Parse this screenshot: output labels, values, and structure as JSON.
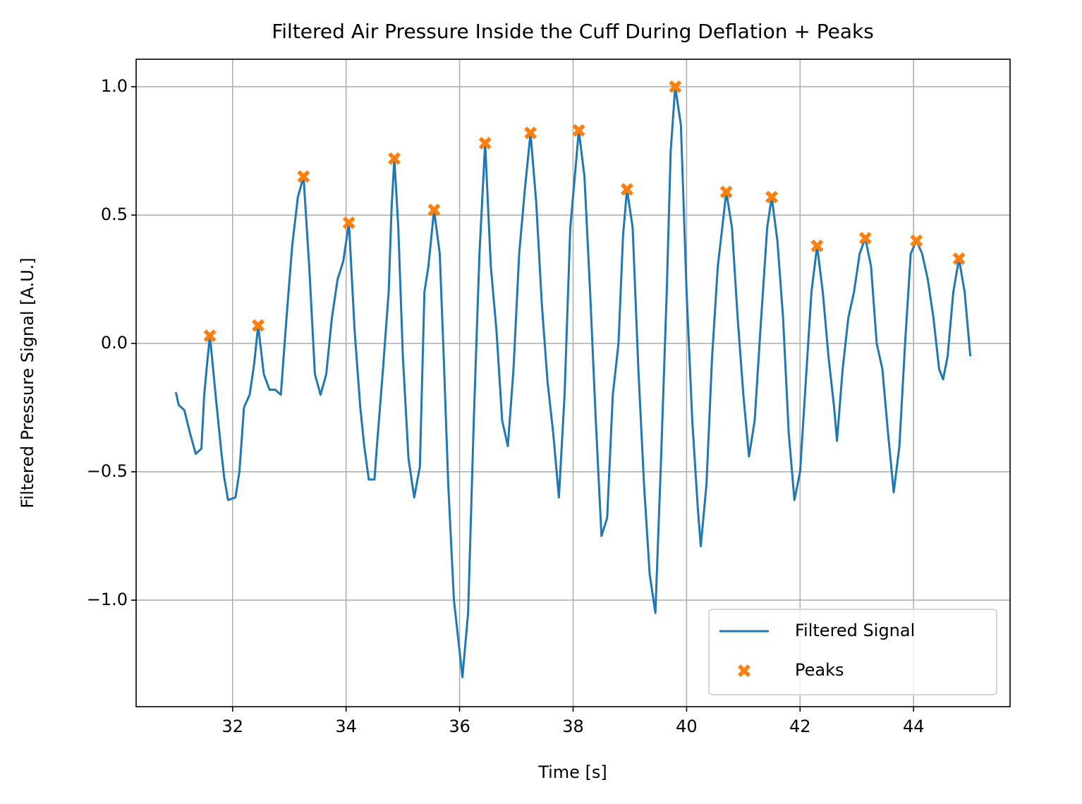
{
  "chart_data": {
    "type": "line",
    "title": "Filtered Air Pressure Inside the Cuff During Deflation + Peaks",
    "xlabel": "Time [s]",
    "ylabel": "Filtered Pressure Signal [A.U.]",
    "xlim": [
      30.3,
      45.7
    ],
    "ylim": [
      -1.415,
      1.107
    ],
    "xticks": [
      32,
      34,
      36,
      38,
      40,
      42,
      44
    ],
    "yticks": [
      {
        "value": -1,
        "label": "−1.0"
      },
      {
        "value": -0.5,
        "label": "−0.5"
      },
      {
        "value": 0,
        "label": "0.0"
      },
      0.5,
      {
        "value": 1,
        "label": "1.0"
      }
    ],
    "grid": true,
    "legend": "lower right",
    "series": [
      {
        "name": "Filtered Signal",
        "kind": "line",
        "color": "#1f77b4",
        "x": [
          31.0,
          31.05,
          31.15,
          31.25,
          31.35,
          31.45,
          31.5,
          31.55,
          31.6,
          31.7,
          31.8,
          31.85,
          31.92,
          32.05,
          32.12,
          32.2,
          32.3,
          32.38,
          32.45,
          32.55,
          32.65,
          32.75,
          32.85,
          32.95,
          33.05,
          33.15,
          33.25,
          33.35,
          33.45,
          33.55,
          33.65,
          33.75,
          33.85,
          33.95,
          34.05,
          34.15,
          34.25,
          34.32,
          34.4,
          34.5,
          34.55,
          34.65,
          34.75,
          34.8,
          34.85,
          34.92,
          35.0,
          35.1,
          35.2,
          35.3,
          35.38,
          35.45,
          35.55,
          35.65,
          35.72,
          35.8,
          35.9,
          36.05,
          36.15,
          36.25,
          36.35,
          36.45,
          36.55,
          36.65,
          36.75,
          36.85,
          36.95,
          37.05,
          37.15,
          37.25,
          37.35,
          37.45,
          37.55,
          37.65,
          37.75,
          37.85,
          37.95,
          38.05,
          38.1,
          38.2,
          38.3,
          38.4,
          38.5,
          38.6,
          38.7,
          38.8,
          38.88,
          38.95,
          39.05,
          39.15,
          39.25,
          39.35,
          39.45,
          39.55,
          39.65,
          39.72,
          39.8,
          39.9,
          40.0,
          40.1,
          40.2,
          40.25,
          40.35,
          40.45,
          40.55,
          40.7,
          40.8,
          40.9,
          41.0,
          41.1,
          41.2,
          41.3,
          41.42,
          41.5,
          41.6,
          41.7,
          41.8,
          41.9,
          42.0,
          42.1,
          42.2,
          42.3,
          42.4,
          42.5,
          42.6,
          42.65,
          42.75,
          42.85,
          42.95,
          43.05,
          43.15,
          43.25,
          43.35,
          43.45,
          43.55,
          43.65,
          43.75,
          43.85,
          43.95,
          44.05,
          44.15,
          44.25,
          44.35,
          44.45,
          44.52,
          44.6,
          44.7,
          44.8,
          44.9,
          45.0
        ],
        "values": [
          -0.19,
          -0.24,
          -0.26,
          -0.35,
          -0.43,
          -0.41,
          -0.2,
          -0.08,
          0.03,
          -0.2,
          -0.42,
          -0.52,
          -0.61,
          -0.6,
          -0.5,
          -0.25,
          -0.2,
          -0.08,
          0.07,
          -0.12,
          -0.18,
          -0.18,
          -0.2,
          0.1,
          0.38,
          0.57,
          0.65,
          0.3,
          -0.12,
          -0.2,
          -0.12,
          0.1,
          0.25,
          0.32,
          0.47,
          0.05,
          -0.25,
          -0.4,
          -0.53,
          -0.53,
          -0.38,
          -0.1,
          0.2,
          0.52,
          0.72,
          0.45,
          -0.05,
          -0.45,
          -0.6,
          -0.48,
          0.2,
          0.3,
          0.52,
          0.35,
          -0.05,
          -0.55,
          -1.0,
          -1.3,
          -1.05,
          -0.3,
          0.35,
          0.78,
          0.3,
          0.05,
          -0.3,
          -0.4,
          -0.1,
          0.35,
          0.6,
          0.82,
          0.55,
          0.15,
          -0.15,
          -0.35,
          -0.6,
          -0.2,
          0.45,
          0.7,
          0.83,
          0.65,
          0.2,
          -0.3,
          -0.75,
          -0.68,
          -0.2,
          0.0,
          0.42,
          0.6,
          0.45,
          -0.1,
          -0.55,
          -0.9,
          -1.05,
          -0.45,
          0.2,
          0.75,
          1.0,
          0.85,
          0.2,
          -0.3,
          -0.65,
          -0.79,
          -0.55,
          -0.05,
          0.3,
          0.59,
          0.45,
          0.1,
          -0.2,
          -0.44,
          -0.3,
          0.05,
          0.45,
          0.57,
          0.4,
          0.1,
          -0.35,
          -0.61,
          -0.5,
          -0.15,
          0.2,
          0.38,
          0.2,
          -0.05,
          -0.25,
          -0.38,
          -0.1,
          0.1,
          0.2,
          0.35,
          0.41,
          0.3,
          0.0,
          -0.1,
          -0.35,
          -0.58,
          -0.4,
          0.0,
          0.35,
          0.4,
          0.35,
          0.25,
          0.1,
          -0.1,
          -0.14,
          -0.05,
          0.2,
          0.33,
          0.2,
          -0.05
        ]
      },
      {
        "name": "Peaks",
        "kind": "marker",
        "color": "#ff7f0e",
        "x": [
          31.6,
          32.45,
          33.25,
          34.05,
          34.85,
          35.55,
          36.45,
          37.25,
          38.1,
          38.95,
          39.8,
          40.7,
          41.5,
          42.3,
          43.15,
          44.05,
          44.8
        ],
        "values": [
          0.03,
          0.07,
          0.65,
          0.47,
          0.72,
          0.52,
          0.78,
          0.82,
          0.83,
          0.6,
          1.0,
          0.59,
          0.57,
          0.38,
          0.41,
          0.4,
          0.33
        ]
      }
    ]
  }
}
